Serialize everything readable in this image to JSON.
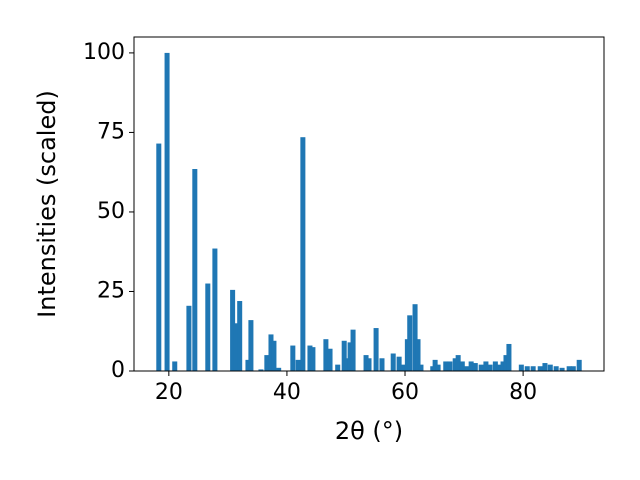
{
  "chart_data": {
    "type": "bar",
    "x_label": "2θ (°)",
    "y_label": "Intensities (scaled)",
    "x": [
      18.3,
      19.7,
      21.0,
      23.4,
      24.4,
      26.6,
      27.8,
      30.8,
      31.4,
      32.0,
      33.4,
      33.9,
      35.6,
      36.6,
      37.3,
      37.8,
      38.6,
      41.0,
      41.9,
      42.7,
      43.9,
      44.4,
      46.6,
      47.3,
      48.6,
      49.7,
      50.2,
      50.7,
      51.2,
      53.4,
      53.9,
      55.1,
      56.1,
      58.0,
      59.0,
      59.7,
      60.4,
      60.8,
      61.7,
      62.2,
      62.7,
      64.7,
      65.1,
      65.6,
      66.9,
      67.6,
      68.5,
      69.0,
      69.7,
      70.5,
      71.2,
      71.9,
      72.9,
      73.7,
      74.4,
      75.3,
      75.9,
      76.6,
      77.1,
      77.6,
      79.7,
      80.7,
      81.7,
      82.9,
      83.7,
      84.6,
      85.6,
      86.6,
      87.8,
      88.5,
      89.5
    ],
    "values": [
      71.5,
      100,
      3,
      20.5,
      63.5,
      27.5,
      38.5,
      25.5,
      15,
      22,
      3.5,
      16,
      0.5,
      5,
      11.5,
      9.5,
      1,
      8,
      3.5,
      73.5,
      8,
      7.5,
      10,
      7,
      2,
      9.5,
      4,
      9,
      13,
      5,
      4,
      13.5,
      4,
      5.5,
      4.5,
      2,
      10,
      17.5,
      21,
      10,
      2,
      1.5,
      3.5,
      2,
      3,
      3,
      4,
      5,
      3,
      1.5,
      3,
      2.5,
      2,
      3,
      2,
      3,
      2,
      3,
      5,
      8.5,
      2,
      1.5,
      1.5,
      1.5,
      2.5,
      2,
      1.5,
      1,
      1.5,
      1.5,
      3.5
    ],
    "color": "#1f77b4",
    "xlim": [
      14.1,
      93.7
    ],
    "ylim": [
      0,
      105
    ],
    "xticks": [
      20,
      40,
      60,
      80
    ],
    "yticks": [
      0,
      25,
      50,
      75,
      100
    ],
    "grid": false
  }
}
